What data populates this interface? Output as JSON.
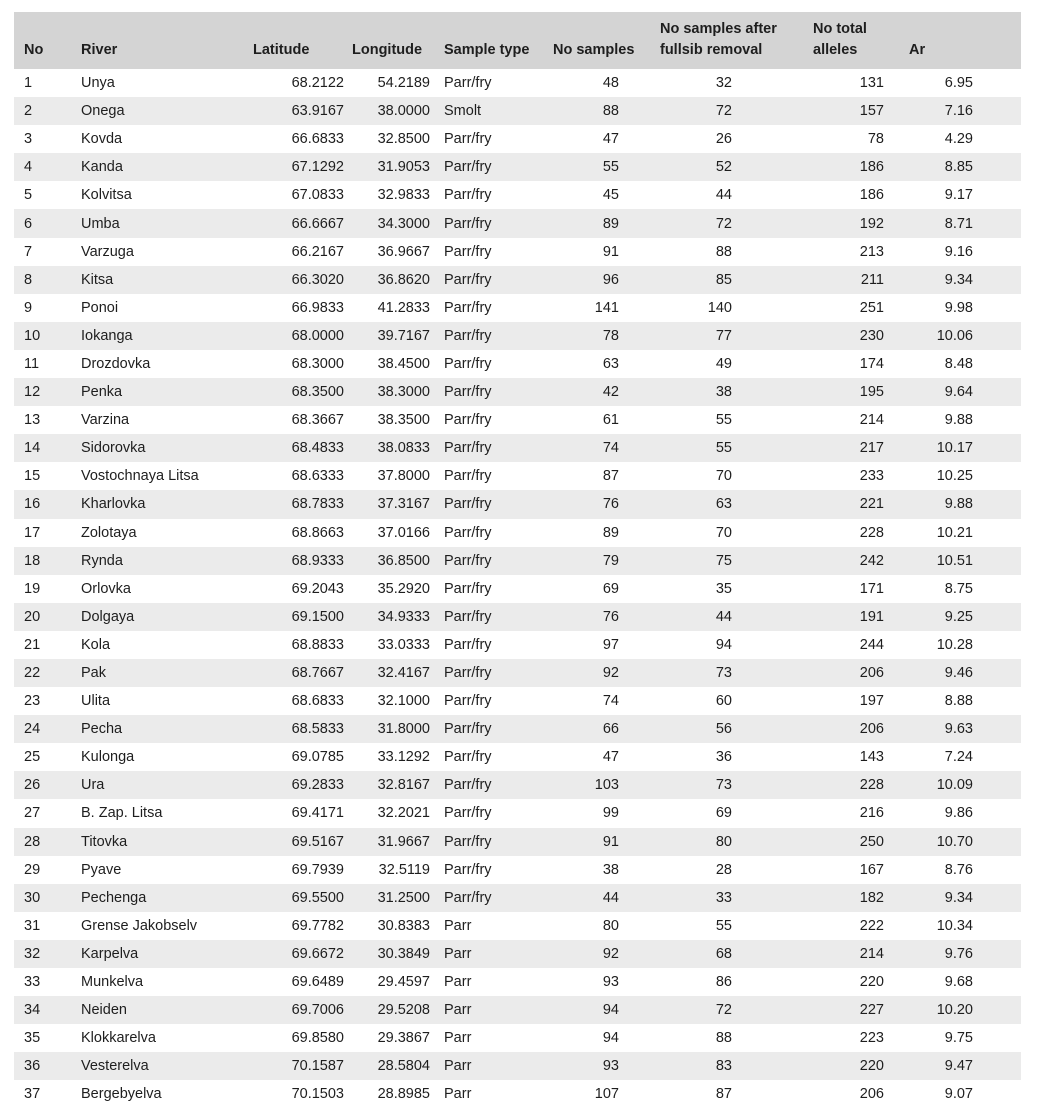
{
  "table": {
    "headers": {
      "no": "No",
      "river": "River",
      "latitude": "Latitude",
      "longitude": "Longitude",
      "sample_type": "Sample type",
      "no_samples": "No samples",
      "fullsib_line1": "No samples after",
      "fullsib_line2": "fullsib removal",
      "alleles_line1": "No total",
      "alleles_line2": "alleles",
      "ar": "Ar"
    },
    "rows": [
      {
        "no": "1",
        "river": "Unya",
        "lat": "68.2122",
        "lon": "54.2189",
        "type": "Parr/fry",
        "ns": "48",
        "fs": "32",
        "alleles": "131",
        "ar": "6.95"
      },
      {
        "no": "2",
        "river": "Onega",
        "lat": "63.9167",
        "lon": "38.0000",
        "type": "Smolt",
        "ns": "88",
        "fs": "72",
        "alleles": "157",
        "ar": "7.16"
      },
      {
        "no": "3",
        "river": "Kovda",
        "lat": "66.6833",
        "lon": "32.8500",
        "type": "Parr/fry",
        "ns": "47",
        "fs": "26",
        "alleles": "78",
        "ar": "4.29"
      },
      {
        "no": "4",
        "river": "Kanda",
        "lat": "67.1292",
        "lon": "31.9053",
        "type": "Parr/fry",
        "ns": "55",
        "fs": "52",
        "alleles": "186",
        "ar": "8.85"
      },
      {
        "no": "5",
        "river": "Kolvitsa",
        "lat": "67.0833",
        "lon": "32.9833",
        "type": "Parr/fry",
        "ns": "45",
        "fs": "44",
        "alleles": "186",
        "ar": "9.17"
      },
      {
        "no": "6",
        "river": "Umba",
        "lat": "66.6667",
        "lon": "34.3000",
        "type": "Parr/fry",
        "ns": "89",
        "fs": "72",
        "alleles": "192",
        "ar": "8.71"
      },
      {
        "no": "7",
        "river": "Varzuga",
        "lat": "66.2167",
        "lon": "36.9667",
        "type": "Parr/fry",
        "ns": "91",
        "fs": "88",
        "alleles": "213",
        "ar": "9.16"
      },
      {
        "no": "8",
        "river": "Kitsa",
        "lat": "66.3020",
        "lon": "36.8620",
        "type": "Parr/fry",
        "ns": "96",
        "fs": "85",
        "alleles": "211",
        "ar": "9.34"
      },
      {
        "no": "9",
        "river": "Ponoi",
        "lat": "66.9833",
        "lon": "41.2833",
        "type": "Parr/fry",
        "ns": "141",
        "fs": "140",
        "alleles": "251",
        "ar": "9.98"
      },
      {
        "no": "10",
        "river": "Iokanga",
        "lat": "68.0000",
        "lon": "39.7167",
        "type": "Parr/fry",
        "ns": "78",
        "fs": "77",
        "alleles": "230",
        "ar": "10.06"
      },
      {
        "no": "11",
        "river": "Drozdovka",
        "lat": "68.3000",
        "lon": "38.4500",
        "type": "Parr/fry",
        "ns": "63",
        "fs": "49",
        "alleles": "174",
        "ar": "8.48"
      },
      {
        "no": "12",
        "river": "Penka",
        "lat": "68.3500",
        "lon": "38.3000",
        "type": "Parr/fry",
        "ns": "42",
        "fs": "38",
        "alleles": "195",
        "ar": "9.64"
      },
      {
        "no": "13",
        "river": "Varzina",
        "lat": "68.3667",
        "lon": "38.3500",
        "type": "Parr/fry",
        "ns": "61",
        "fs": "55",
        "alleles": "214",
        "ar": "9.88"
      },
      {
        "no": "14",
        "river": "Sidorovka",
        "lat": "68.4833",
        "lon": "38.0833",
        "type": "Parr/fry",
        "ns": "74",
        "fs": "55",
        "alleles": "217",
        "ar": "10.17"
      },
      {
        "no": "15",
        "river": "Vostochnaya Litsa",
        "lat": "68.6333",
        "lon": "37.8000",
        "type": "Parr/fry",
        "ns": "87",
        "fs": "70",
        "alleles": "233",
        "ar": "10.25"
      },
      {
        "no": "16",
        "river": "Kharlovka",
        "lat": "68.7833",
        "lon": "37.3167",
        "type": "Parr/fry",
        "ns": "76",
        "fs": "63",
        "alleles": "221",
        "ar": "9.88"
      },
      {
        "no": "17",
        "river": "Zolotaya",
        "lat": "68.8663",
        "lon": "37.0166",
        "type": "Parr/fry",
        "ns": "89",
        "fs": "70",
        "alleles": "228",
        "ar": "10.21"
      },
      {
        "no": "18",
        "river": "Rynda",
        "lat": "68.9333",
        "lon": "36.8500",
        "type": "Parr/fry",
        "ns": "79",
        "fs": "75",
        "alleles": "242",
        "ar": "10.51"
      },
      {
        "no": "19",
        "river": "Orlovka",
        "lat": "69.2043",
        "lon": "35.2920",
        "type": "Parr/fry",
        "ns": "69",
        "fs": "35",
        "alleles": "171",
        "ar": "8.75"
      },
      {
        "no": "20",
        "river": "Dolgaya",
        "lat": "69.1500",
        "lon": "34.9333",
        "type": "Parr/fry",
        "ns": "76",
        "fs": "44",
        "alleles": "191",
        "ar": "9.25"
      },
      {
        "no": "21",
        "river": "Kola",
        "lat": "68.8833",
        "lon": "33.0333",
        "type": "Parr/fry",
        "ns": "97",
        "fs": "94",
        "alleles": "244",
        "ar": "10.28"
      },
      {
        "no": "22",
        "river": "Pak",
        "lat": "68.7667",
        "lon": "32.4167",
        "type": "Parr/fry",
        "ns": "92",
        "fs": "73",
        "alleles": "206",
        "ar": "9.46"
      },
      {
        "no": "23",
        "river": "Ulita",
        "lat": "68.6833",
        "lon": "32.1000",
        "type": "Parr/fry",
        "ns": "74",
        "fs": "60",
        "alleles": "197",
        "ar": "8.88"
      },
      {
        "no": "24",
        "river": "Pecha",
        "lat": "68.5833",
        "lon": "31.8000",
        "type": "Parr/fry",
        "ns": "66",
        "fs": "56",
        "alleles": "206",
        "ar": "9.63"
      },
      {
        "no": "25",
        "river": "Kulonga",
        "lat": "69.0785",
        "lon": "33.1292",
        "type": "Parr/fry",
        "ns": "47",
        "fs": "36",
        "alleles": "143",
        "ar": "7.24"
      },
      {
        "no": "26",
        "river": "Ura",
        "lat": "69.2833",
        "lon": "32.8167",
        "type": "Parr/fry",
        "ns": "103",
        "fs": "73",
        "alleles": "228",
        "ar": "10.09"
      },
      {
        "no": "27",
        "river": "B. Zap. Litsa",
        "lat": "69.4171",
        "lon": "32.2021",
        "type": "Parr/fry",
        "ns": "99",
        "fs": "69",
        "alleles": "216",
        "ar": "9.86"
      },
      {
        "no": "28",
        "river": "Titovka",
        "lat": "69.5167",
        "lon": "31.9667",
        "type": "Parr/fry",
        "ns": "91",
        "fs": "80",
        "alleles": "250",
        "ar": "10.70"
      },
      {
        "no": "29",
        "river": "Pyave",
        "lat": "69.7939",
        "lon": "32.5119",
        "type": "Parr/fry",
        "ns": "38",
        "fs": "28",
        "alleles": "167",
        "ar": "8.76"
      },
      {
        "no": "30",
        "river": "Pechenga",
        "lat": "69.5500",
        "lon": "31.2500",
        "type": "Parr/fry",
        "ns": "44",
        "fs": "33",
        "alleles": "182",
        "ar": "9.34"
      },
      {
        "no": "31",
        "river": "Grense Jakobselv",
        "lat": "69.7782",
        "lon": "30.8383",
        "type": "Parr",
        "ns": "80",
        "fs": "55",
        "alleles": "222",
        "ar": "10.34"
      },
      {
        "no": "32",
        "river": "Karpelva",
        "lat": "69.6672",
        "lon": "30.3849",
        "type": "Parr",
        "ns": "92",
        "fs": "68",
        "alleles": "214",
        "ar": "9.76"
      },
      {
        "no": "33",
        "river": "Munkelva",
        "lat": "69.6489",
        "lon": "29.4597",
        "type": "Parr",
        "ns": "93",
        "fs": "86",
        "alleles": "220",
        "ar": "9.68"
      },
      {
        "no": "34",
        "river": "Neiden",
        "lat": "69.7006",
        "lon": "29.5208",
        "type": "Parr",
        "ns": "94",
        "fs": "72",
        "alleles": "227",
        "ar": "10.20"
      },
      {
        "no": "35",
        "river": "Klokkarelva",
        "lat": "69.8580",
        "lon": "29.3867",
        "type": "Parr",
        "ns": "94",
        "fs": "88",
        "alleles": "223",
        "ar": "9.75"
      },
      {
        "no": "36",
        "river": "Vesterelva",
        "lat": "70.1587",
        "lon": "28.5804",
        "type": "Parr",
        "ns": "93",
        "fs": "83",
        "alleles": "220",
        "ar": "9.47"
      },
      {
        "no": "37",
        "river": "Bergebyelva",
        "lat": "70.1503",
        "lon": "28.8985",
        "type": "Parr",
        "ns": "107",
        "fs": "87",
        "alleles": "206",
        "ar": "9.07"
      }
    ]
  }
}
